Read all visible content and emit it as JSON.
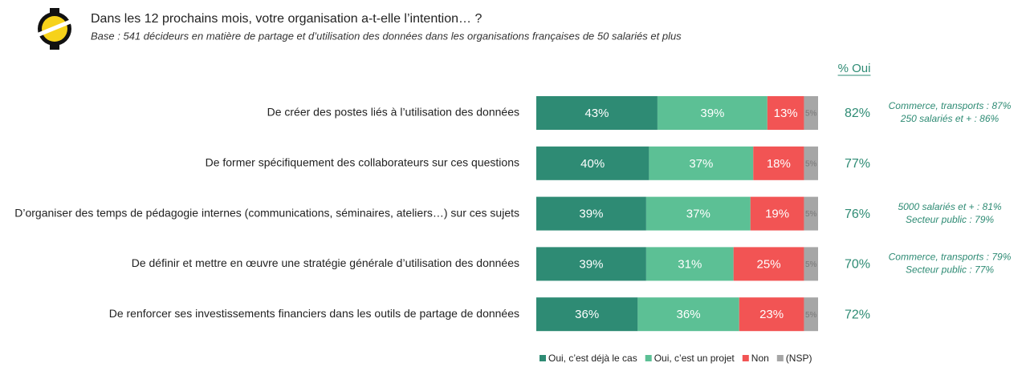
{
  "chart_data": {
    "type": "bar",
    "orientation": "horizontal",
    "stacked": true,
    "title": "Dans les 12 prochains mois, votre organisation a-t-elle l’intention… ?",
    "subtitle": "Base : 541 décideurs en matière de partage et d’utilisation des données dans les organisations françaises de 50 salariés et plus",
    "categories": [
      "De créer des postes liés à l’utilisation des données",
      "De former spécifiquement des collaborateurs sur ces questions",
      "D’organiser des temps de pédagogie internes (communications, séminaires, ateliers…) sur ces sujets",
      "De définir et mettre en œuvre une stratégie générale d’utilisation des données",
      "De renforcer ses investissements financiers dans les outils de partage de données"
    ],
    "xlim": [
      0,
      100
    ],
    "series": [
      {
        "name": "Oui, c’est déjà le cas",
        "color": "#2e8b74",
        "values": [
          43,
          40,
          39,
          39,
          36
        ],
        "value_labels": [
          "43%",
          "40%",
          "39%",
          "39%",
          "36%"
        ]
      },
      {
        "name": "Oui, c’est un projet",
        "color": "#5cc095",
        "values": [
          39,
          37,
          37,
          31,
          36
        ],
        "value_labels": [
          "39%",
          "37%",
          "37%",
          "31%",
          "36%"
        ]
      },
      {
        "name": "Non",
        "color": "#f25454",
        "values": [
          13,
          18,
          19,
          25,
          23
        ],
        "value_labels": [
          "13%",
          "18%",
          "19%",
          "25%",
          "23%"
        ]
      },
      {
        "name": "(NSP)",
        "color": "#a6a6a6",
        "values": [
          5,
          5,
          5,
          5,
          5
        ],
        "value_labels": [
          "5%",
          "5%",
          "5%",
          "5%",
          "5%"
        ]
      }
    ],
    "totals": {
      "title": "% Oui",
      "color": "#2e8b74",
      "values": [
        82,
        77,
        76,
        70,
        72
      ],
      "value_labels": [
        "82%",
        "77%",
        "76%",
        "70%",
        "72%"
      ]
    },
    "annotations": [
      [
        "Commerce, transports : 87%",
        "250 salariés et + : 86%"
      ],
      null,
      [
        "5000 salariés et + : 81%",
        "Secteur public : 79%"
      ],
      [
        "Commerce, transports : 79%",
        "Secteur public : 77%"
      ],
      null
    ]
  }
}
